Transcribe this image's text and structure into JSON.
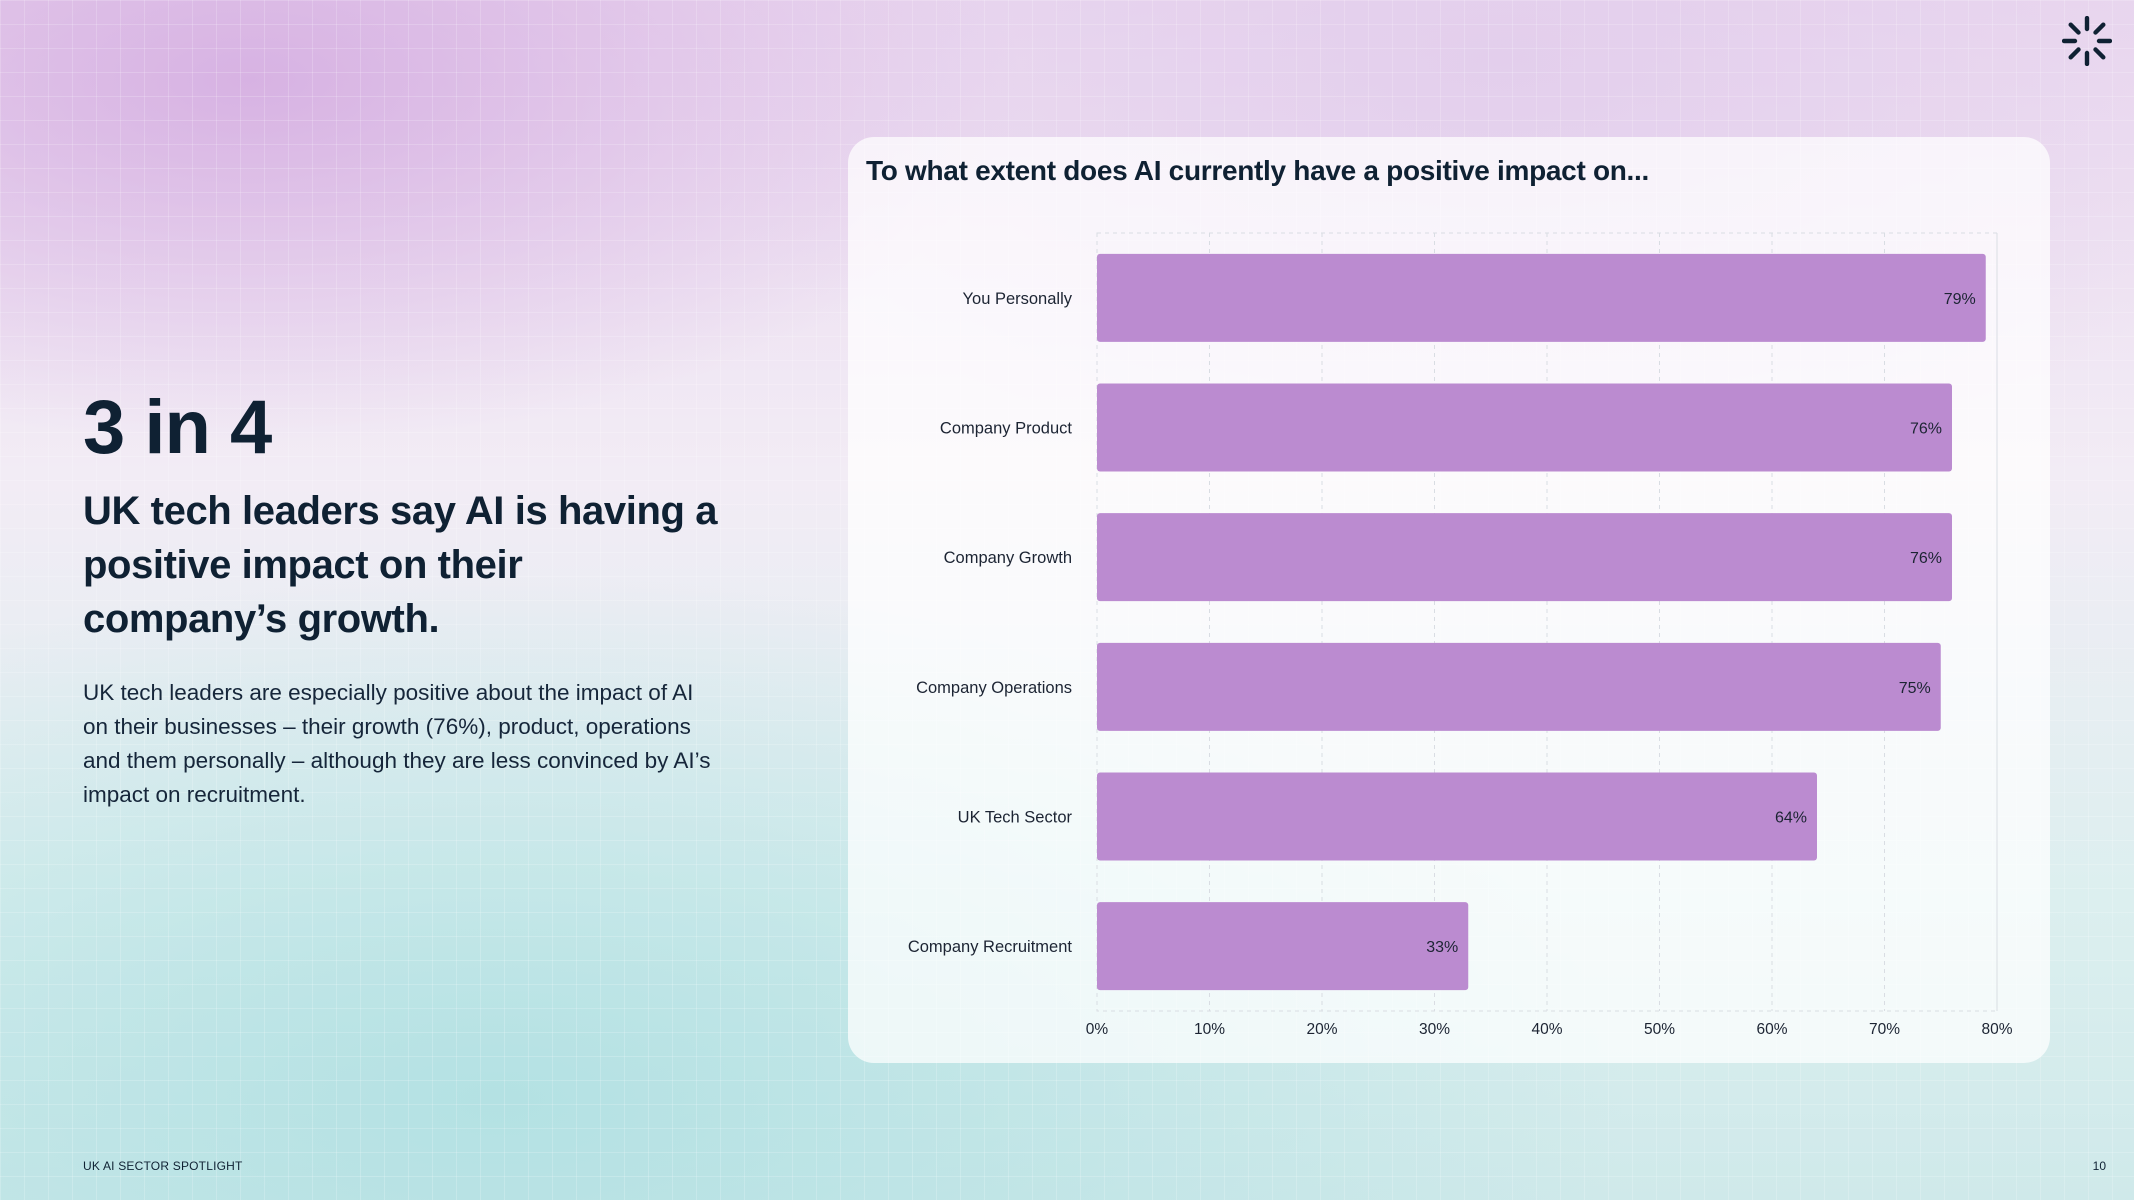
{
  "colors": {
    "bar": "#bb8bd0",
    "text_dark": "#0f2133"
  },
  "logo": {
    "icon": "asterisk-burst-icon"
  },
  "left": {
    "stat": "3 in 4",
    "headline": "UK tech leaders say AI is having a positive impact on their company’s growth.",
    "body": "UK tech leaders are especially positive about the impact of AI on their businesses – their growth (76%), product, operations and them personally – although they are less convinced by AI’s impact on recruitment."
  },
  "chart_data": {
    "type": "bar",
    "orientation": "horizontal",
    "title": "To what extent does AI currently have a positive impact on...",
    "categories": [
      "You Personally",
      "Company Product",
      "Company Growth",
      "Company Operations",
      "UK Tech Sector",
      "Company Recruitment"
    ],
    "values": [
      79,
      76,
      76,
      75,
      64,
      33
    ],
    "value_labels": [
      "79%",
      "76%",
      "76%",
      "75%",
      "64%",
      "33%"
    ],
    "xlim": [
      0,
      80
    ],
    "xticks": [
      0,
      10,
      20,
      30,
      40,
      50,
      60,
      70,
      80
    ],
    "xtick_labels": [
      "0%",
      "10%",
      "20%",
      "30%",
      "40%",
      "50%",
      "60%",
      "70%",
      "80%"
    ],
    "xlabel": "",
    "ylabel": "",
    "grid": true
  },
  "footer": {
    "left": "UK AI SECTOR SPOTLIGHT",
    "page_number": "10"
  }
}
